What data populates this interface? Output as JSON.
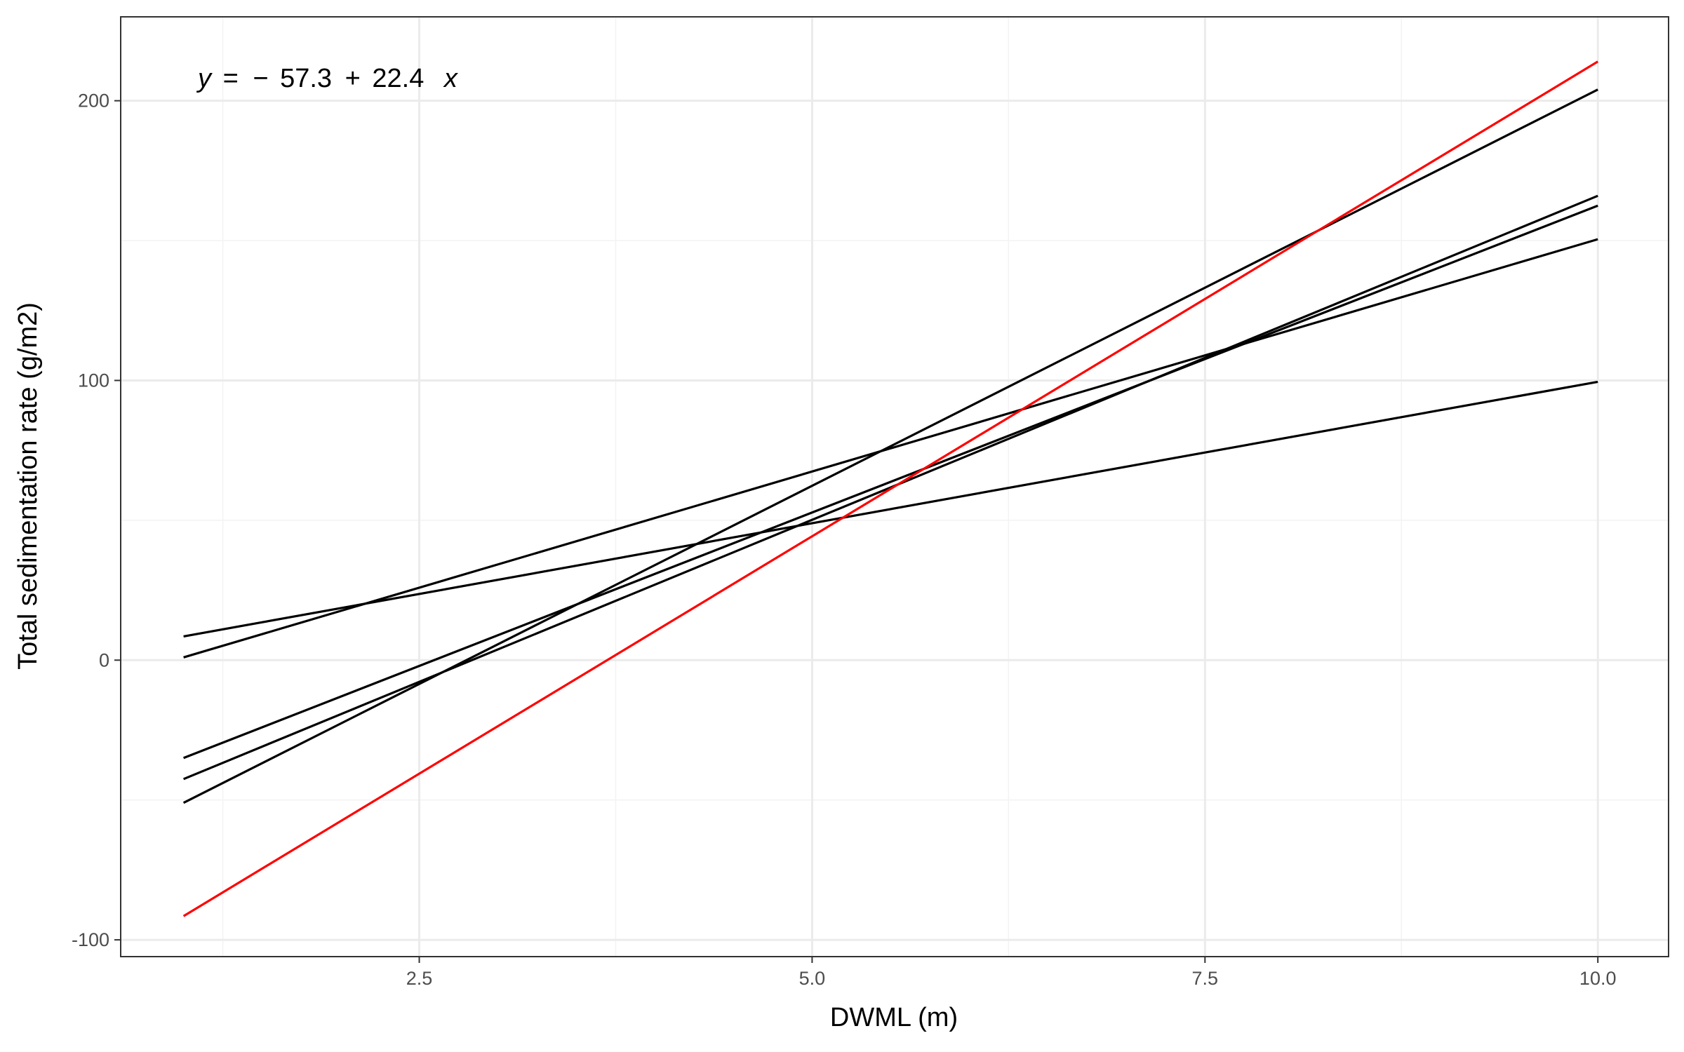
{
  "chart_data": {
    "type": "line",
    "title": "",
    "xlabel": "DWML (m)",
    "ylabel": "Total sedimentation rate (g/m2)",
    "xlim": [
      0.6,
      10.45
    ],
    "ylim": [
      -106,
      230
    ],
    "x_ticks": [
      2.5,
      5.0,
      7.5,
      10.0
    ],
    "x_tick_labels": [
      "2.5",
      "5.0",
      "7.5",
      "10.0"
    ],
    "y_ticks": [
      -100,
      0,
      100,
      200
    ],
    "y_tick_labels": [
      "-100",
      "0",
      "100",
      "200"
    ],
    "grid": true,
    "legend": "none",
    "annotation": {
      "lhs": "y",
      "equals": "=",
      "minus": "−",
      "intercept": "57.3",
      "plus": "+",
      "slope": "22.4",
      "var": "x"
    },
    "colors": {
      "series": "#000000",
      "highlight": "#ff0000",
      "grid_major": "#ebebeb",
      "grid_minor": "#f3f3f3",
      "panel_border": "#333333"
    },
    "series": [
      {
        "x": [
          1.0,
          10.0
        ],
        "y": [
          8.5,
          99.5
        ],
        "color": "#000000"
      },
      {
        "x": [
          1.0,
          10.0
        ],
        "y": [
          1.0,
          150.5
        ],
        "color": "#000000"
      },
      {
        "x": [
          1.0,
          10.0
        ],
        "y": [
          -35.0,
          162.5
        ],
        "color": "#000000"
      },
      {
        "x": [
          1.0,
          10.0
        ],
        "y": [
          -42.5,
          166.0
        ],
        "color": "#000000"
      },
      {
        "x": [
          1.0,
          10.0
        ],
        "y": [
          -51.0,
          204.0
        ],
        "color": "#000000"
      },
      {
        "x": [
          1.0,
          10.0
        ],
        "y": [
          -91.5,
          214.0
        ],
        "color": "#ff0000"
      }
    ]
  }
}
